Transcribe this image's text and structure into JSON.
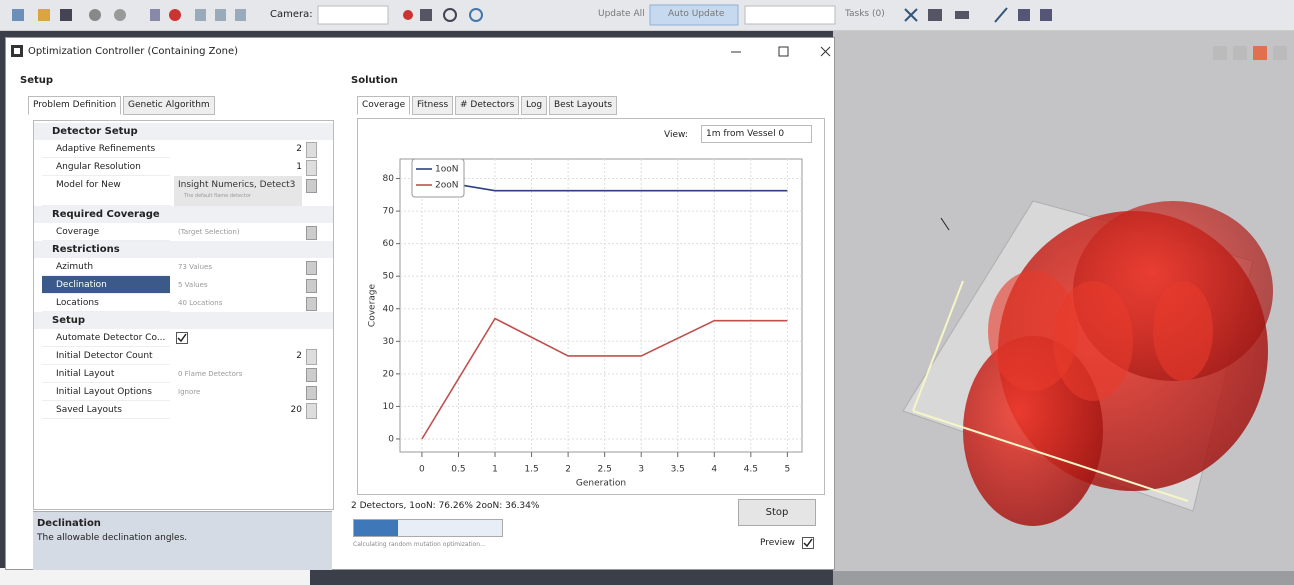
{
  "toolbar": {
    "camera_label": "Camera:",
    "update_all": "Update All",
    "auto_update": "Auto Update",
    "tasks": "Tasks (0)"
  },
  "window": {
    "title": "Optimization Controller (Containing Zone)"
  },
  "setup": {
    "heading": "Setup",
    "tabs": [
      "Problem Definition",
      "Genetic Algorithm"
    ],
    "groups": [
      {
        "name": "Detector Setup",
        "rows": [
          {
            "label": "Adaptive Refinements",
            "value": "2"
          },
          {
            "label": "Angular Resolution",
            "value": "1"
          },
          {
            "label": "Model for New",
            "value": "Insight Numerics, Detect3",
            "hint": "The default flame detector"
          }
        ]
      },
      {
        "name": "Required Coverage",
        "rows": [
          {
            "label": "Coverage",
            "value": "(Target Selection)"
          }
        ]
      },
      {
        "name": "Restrictions",
        "rows": [
          {
            "label": "Azimuth",
            "value": "73 Values"
          },
          {
            "label": "Declination",
            "value": "5 Values",
            "selected": true
          },
          {
            "label": "Locations",
            "value": "40 Locations"
          }
        ]
      },
      {
        "name": "Setup",
        "rows": [
          {
            "label": "Automate Detector Co...",
            "checked": true
          },
          {
            "label": "Initial Detector Count",
            "value": "2"
          },
          {
            "label": "Initial Layout",
            "value": "0 Flame Detectors"
          },
          {
            "label": "Initial Layout Options",
            "value": "Ignore"
          },
          {
            "label": "Saved Layouts",
            "value": "20"
          }
        ]
      }
    ]
  },
  "description": {
    "title": "Declination",
    "text": "The allowable declination angles."
  },
  "solution": {
    "heading": "Solution",
    "tabs": [
      "Coverage",
      "Fitness",
      "# Detectors",
      "Log",
      "Best Layouts"
    ],
    "view_label": "View:",
    "view_value": "1m from Vessel 0",
    "chart": {
      "type": "line",
      "x_label": "Generation",
      "y_label": "Coverage",
      "x": [
        0,
        1,
        2,
        3,
        4,
        5
      ],
      "series": [
        {
          "name": "1ooN",
          "color": "#2e3f7f",
          "values": [
            80,
            76.26,
            76.26,
            76.26,
            76.26,
            76.26
          ]
        },
        {
          "name": "2ooN",
          "color": "#c0504d",
          "values": [
            0,
            37,
            25.5,
            25.5,
            36.34,
            36.34
          ]
        }
      ],
      "xlim": [
        -0.3,
        5.2
      ],
      "xticks": [
        0,
        0.5,
        1,
        1.5,
        2,
        2.5,
        3,
        3.5,
        4,
        4.5,
        5
      ],
      "ylim": [
        -4,
        86
      ],
      "yticks": [
        0,
        10,
        20,
        30,
        40,
        50,
        60,
        70,
        80
      ],
      "grid": true
    },
    "status": "2 Detectors, 1ooN: 76.26% 2ooN: 36.34%",
    "progress": 0.3,
    "progress_text": "Calculating random mutation optimization...",
    "stop": "Stop",
    "preview": "Preview",
    "preview_checked": true
  }
}
